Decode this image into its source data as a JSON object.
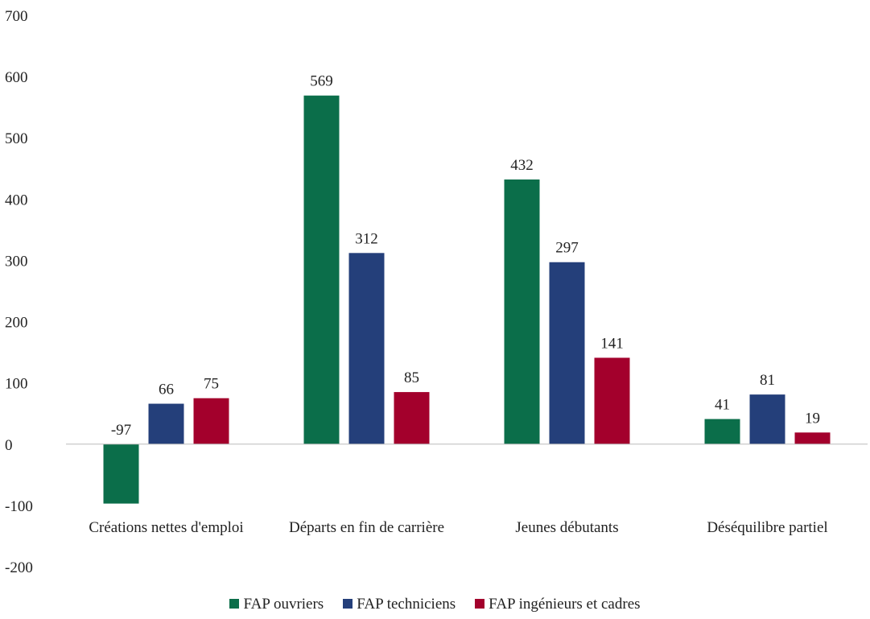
{
  "chart_data": {
    "type": "bar",
    "categories": [
      "Créations nettes d'emploi",
      "Départs en fin de carrière",
      "Jeunes débutants",
      "Déséquilibre partiel"
    ],
    "series": [
      {
        "name": "FAP ouvriers",
        "color": "#0b6e4a",
        "values": [
          -97,
          569,
          432,
          41
        ]
      },
      {
        "name": "FAP techniciens",
        "color": "#243f7a",
        "values": [
          66,
          312,
          297,
          81
        ]
      },
      {
        "name": "FAP ingénieurs et cadres",
        "color": "#a3002c",
        "values": [
          75,
          85,
          141,
          19
        ]
      }
    ],
    "ylim": [
      -200,
      700
    ],
    "yticks": [
      -200,
      -100,
      0,
      100,
      200,
      300,
      400,
      500,
      600,
      700
    ],
    "grid": false,
    "legend": "bottom"
  }
}
